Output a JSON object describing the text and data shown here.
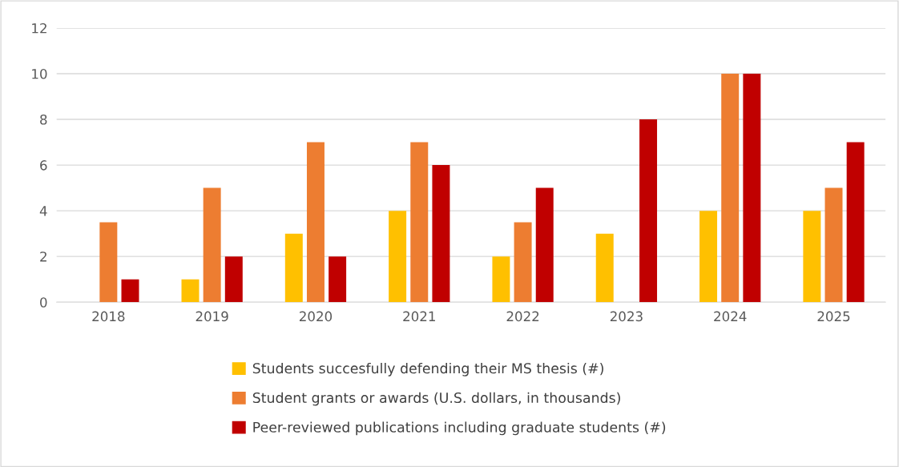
{
  "chart_data": {
    "type": "bar",
    "categories": [
      "2018",
      "2019",
      "2020",
      "2021",
      "2022",
      "2023",
      "2024",
      "2025"
    ],
    "series": [
      {
        "name": "Students succesfully defending their MS thesis (#)",
        "color": "#ffc000",
        "values": [
          null,
          1,
          3,
          4,
          2,
          3,
          4,
          4
        ]
      },
      {
        "name": "Student grants or awards (U.S. dollars, in thousands)",
        "color": "#ed7d31",
        "values": [
          3.5,
          5,
          7,
          7,
          3.5,
          null,
          10,
          5
        ]
      },
      {
        "name": "Peer-reviewed publications including graduate students (#)",
        "color": "#c00000",
        "values": [
          1,
          2,
          2,
          6,
          5,
          8,
          10,
          7
        ]
      }
    ],
    "ylim": [
      0,
      12
    ],
    "yticks": [
      0,
      2,
      4,
      6,
      8,
      10,
      12
    ],
    "grid": "y",
    "legend": "bottom"
  }
}
